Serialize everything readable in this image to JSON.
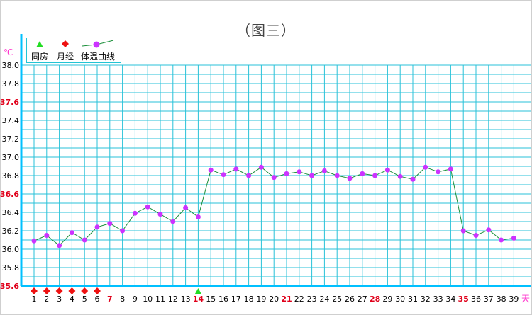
{
  "title": "（图三）",
  "legend": {
    "items": [
      {
        "label": "同房",
        "icon": "green-triangle-icon"
      },
      {
        "label": "月经",
        "icon": "red-diamond-icon"
      },
      {
        "label": "体温曲线",
        "icon": "purple-dot-line-icon"
      }
    ]
  },
  "colors": {
    "grid": "#29c2d8",
    "axis": "#00c0ff",
    "line": "#1a8f3a",
    "point": "#cc33ff",
    "highlight_label": "#e0001a",
    "intercourse": "#22dd22",
    "menstruation": "#ee1111",
    "unit": "#ff33cc"
  },
  "chart_data": {
    "type": "line",
    "title": "（图三）",
    "ylabel": "℃",
    "xlabel": "天",
    "ylim": [
      35.6,
      38.0
    ],
    "yticks": [
      "35.6",
      "35.8",
      "36.0",
      "36.2",
      "36.4",
      "36.6",
      "36.8",
      "37.0",
      "37.2",
      "37.4",
      "37.6",
      "37.8",
      "38.0"
    ],
    "highlight_yticks": [
      "35.6",
      "36.6",
      "37.6"
    ],
    "x": [
      1,
      2,
      3,
      4,
      5,
      6,
      7,
      8,
      9,
      10,
      11,
      12,
      13,
      14,
      15,
      16,
      17,
      18,
      19,
      20,
      21,
      22,
      23,
      24,
      25,
      26,
      27,
      28,
      29,
      30,
      31,
      32,
      33,
      34,
      35,
      36,
      37,
      38,
      39
    ],
    "highlight_x": [
      7,
      14,
      21,
      28,
      35
    ],
    "series": [
      {
        "values": [
          36.09,
          36.15,
          36.04,
          36.18,
          36.1,
          36.24,
          36.28,
          36.2,
          36.39,
          36.46,
          36.38,
          36.3,
          36.45,
          36.35,
          36.86,
          36.81,
          36.87,
          36.8,
          36.89,
          36.78,
          36.82,
          36.84,
          36.8,
          36.85,
          36.8,
          36.77,
          36.82,
          36.8,
          36.86,
          36.79,
          36.76,
          36.89,
          36.84,
          36.87,
          36.2,
          36.15,
          36.21,
          36.1,
          36.12
        ]
      }
    ],
    "menstruation_days": [
      1,
      2,
      3,
      4,
      5,
      6
    ],
    "intercourse_days": [
      14
    ],
    "grid": true,
    "legend_position": "top-left"
  }
}
